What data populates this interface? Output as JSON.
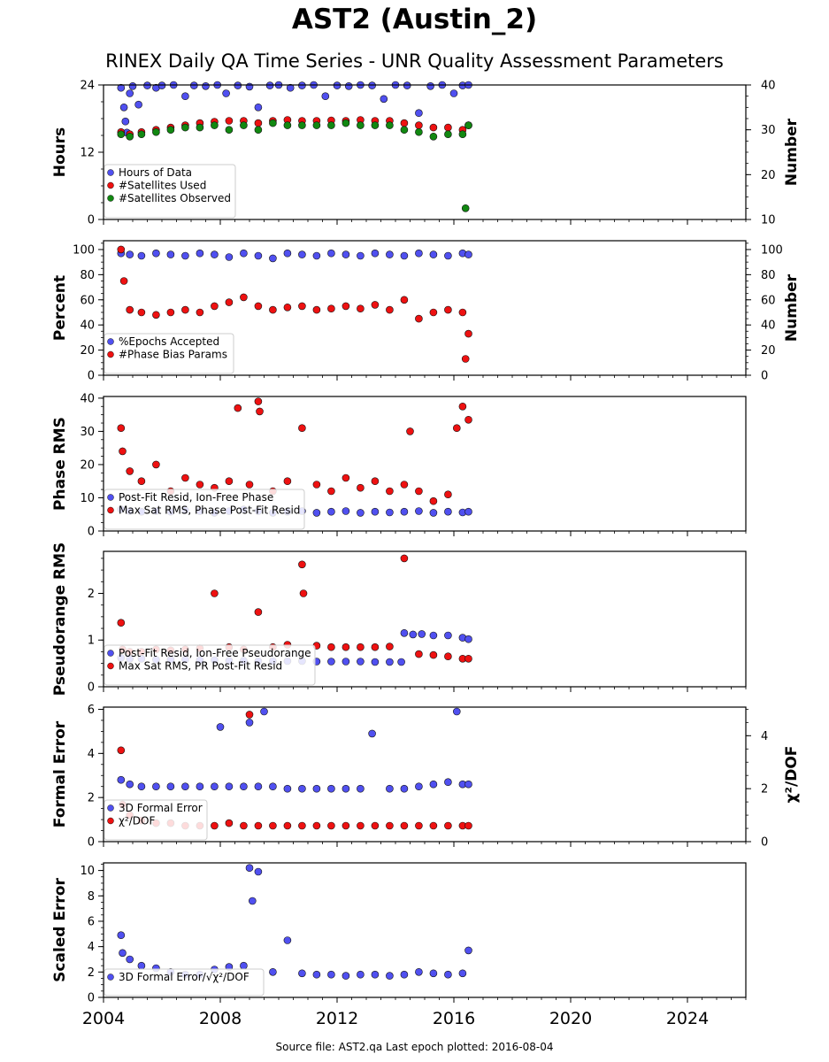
{
  "title": "AST2 (Austin_2)",
  "subtitle": "RINEX Daily QA Time Series - UNR Quality Assessment Parameters",
  "footer": "Source file: AST2.qa Last epoch plotted: 2016-08-04",
  "colors": {
    "blue": "#5050f0",
    "red": "#ee1111",
    "green": "#118811",
    "edge": "#111111"
  },
  "chart_data": [
    {
      "type": "scatter",
      "ylabel": "Hours",
      "ylim": [
        0,
        24
      ],
      "yticks": [
        0,
        12,
        24
      ],
      "y2label": "Number",
      "y2lim": [
        10,
        40
      ],
      "y2ticks": [
        10,
        20,
        30,
        40
      ],
      "legend": "lower-left",
      "series": [
        {
          "name": "Hours of Data",
          "color": "blue",
          "axis": "left",
          "x": [
            2004.6,
            2004.7,
            2004.75,
            2004.8,
            2004.9,
            2005.0,
            2005.2,
            2005.5,
            2005.8,
            2006.0,
            2006.4,
            2006.8,
            2007.1,
            2007.5,
            2007.9,
            2008.2,
            2008.6,
            2009.0,
            2009.3,
            2009.7,
            2010.0,
            2010.4,
            2010.8,
            2011.2,
            2011.6,
            2012.0,
            2012.4,
            2012.8,
            2013.2,
            2013.6,
            2014.0,
            2014.4,
            2014.8,
            2015.2,
            2015.6,
            2016.0,
            2016.3,
            2016.5
          ],
          "y": [
            23.5,
            20.0,
            17.5,
            15.5,
            22.5,
            23.8,
            20.5,
            23.9,
            23.5,
            23.9,
            24.0,
            22.0,
            23.9,
            23.8,
            24.0,
            22.5,
            23.9,
            23.7,
            20.0,
            23.9,
            24.0,
            23.5,
            23.9,
            24.0,
            22.0,
            23.9,
            23.8,
            24.0,
            23.9,
            21.5,
            24.0,
            23.9,
            19.0,
            23.8,
            24.0,
            22.5,
            23.9,
            24.0
          ]
        },
        {
          "name": "#Satellites Used",
          "color": "red",
          "axis": "right",
          "x": [
            2004.6,
            2004.9,
            2005.3,
            2005.8,
            2006.3,
            2006.8,
            2007.3,
            2007.8,
            2008.3,
            2008.8,
            2009.3,
            2009.8,
            2010.3,
            2010.8,
            2011.3,
            2011.8,
            2012.3,
            2012.8,
            2013.3,
            2013.8,
            2014.3,
            2014.8,
            2015.3,
            2015.8,
            2016.3,
            2016.5
          ],
          "y": [
            29.5,
            29.0,
            29.5,
            30.0,
            30.5,
            31.0,
            31.5,
            31.8,
            32.0,
            32.0,
            31.5,
            32.0,
            32.2,
            32.0,
            32.0,
            32.1,
            32.0,
            32.2,
            32.0,
            32.0,
            31.5,
            31.0,
            30.5,
            30.5,
            30.0,
            31.0
          ]
        },
        {
          "name": "#Satellites Observed",
          "color": "green",
          "axis": "right",
          "x": [
            2004.6,
            2004.9,
            2005.3,
            2005.8,
            2006.3,
            2006.8,
            2007.3,
            2007.8,
            2008.3,
            2008.8,
            2009.3,
            2009.8,
            2010.3,
            2010.8,
            2011.3,
            2011.8,
            2012.3,
            2012.8,
            2013.3,
            2013.8,
            2014.3,
            2014.8,
            2015.3,
            2015.8,
            2016.3,
            2016.4,
            2016.5
          ],
          "y": [
            29.0,
            28.5,
            29.0,
            29.5,
            30.0,
            30.5,
            30.5,
            31.0,
            30.0,
            31.0,
            30.0,
            31.5,
            31.0,
            31.0,
            31.0,
            31.0,
            31.5,
            31.0,
            31.0,
            31.0,
            30.0,
            29.5,
            28.5,
            29.0,
            29.0,
            12.5,
            31.0
          ]
        }
      ]
    },
    {
      "type": "scatter",
      "ylabel": "Percent",
      "ylim": [
        0,
        107
      ],
      "yticks": [
        0,
        20,
        40,
        60,
        80,
        100
      ],
      "y2label": "Number",
      "y2lim": [
        0,
        107
      ],
      "y2ticks": [
        0,
        20,
        40,
        60,
        80,
        100
      ],
      "legend": "lower-left",
      "series": [
        {
          "name": "%Epochs Accepted",
          "color": "blue",
          "axis": "left",
          "x": [
            2004.6,
            2004.9,
            2005.3,
            2005.8,
            2006.3,
            2006.8,
            2007.3,
            2007.8,
            2008.3,
            2008.8,
            2009.3,
            2009.8,
            2010.3,
            2010.8,
            2011.3,
            2011.8,
            2012.3,
            2012.8,
            2013.3,
            2013.8,
            2014.3,
            2014.8,
            2015.3,
            2015.8,
            2016.3,
            2016.5
          ],
          "y": [
            97,
            96,
            95,
            97,
            96,
            95,
            97,
            96,
            94,
            97,
            95,
            93,
            97,
            96,
            95,
            97,
            96,
            95,
            97,
            96,
            95,
            97,
            96,
            95,
            97,
            96
          ]
        },
        {
          "name": "#Phase Bias Params",
          "color": "red",
          "axis": "right",
          "x": [
            2004.6,
            2004.7,
            2004.9,
            2005.3,
            2005.8,
            2006.3,
            2006.8,
            2007.3,
            2007.8,
            2008.3,
            2008.8,
            2009.3,
            2009.8,
            2010.3,
            2010.8,
            2011.3,
            2011.8,
            2012.3,
            2012.8,
            2013.3,
            2013.8,
            2014.3,
            2014.8,
            2015.3,
            2015.8,
            2016.3,
            2016.4,
            2016.5
          ],
          "y": [
            100,
            75,
            52,
            50,
            48,
            50,
            52,
            50,
            55,
            58,
            62,
            55,
            52,
            54,
            55,
            52,
            53,
            55,
            53,
            56,
            52,
            60,
            45,
            50,
            52,
            50,
            13,
            33
          ]
        }
      ]
    },
    {
      "type": "scatter",
      "ylabel": "Phase RMS",
      "ylim": [
        0,
        40.5
      ],
      "yticks": [
        0,
        10,
        20,
        30,
        40
      ],
      "legend": "lower-left",
      "series": [
        {
          "name": "Post-Fit Resid, Ion-Free Phase",
          "color": "blue",
          "axis": "left",
          "x": [
            2004.6,
            2004.9,
            2005.3,
            2005.8,
            2006.3,
            2006.8,
            2007.3,
            2007.8,
            2008.3,
            2008.8,
            2009.3,
            2009.8,
            2010.3,
            2010.8,
            2011.3,
            2011.8,
            2012.3,
            2012.8,
            2013.3,
            2013.8,
            2014.3,
            2014.8,
            2015.3,
            2015.8,
            2016.3,
            2016.5
          ],
          "y": [
            6.5,
            6.0,
            5.8,
            6.0,
            5.8,
            6.2,
            6.0,
            5.5,
            6.0,
            6.5,
            6.0,
            5.5,
            5.8,
            6.0,
            5.5,
            5.8,
            6.0,
            5.5,
            5.8,
            5.6,
            5.8,
            6.0,
            5.5,
            5.8,
            5.6,
            5.8
          ]
        },
        {
          "name": "Max Sat RMS, Phase Post-Fit Resid",
          "color": "red",
          "axis": "left",
          "x": [
            2004.6,
            2004.65,
            2004.9,
            2005.3,
            2005.8,
            2006.3,
            2006.8,
            2007.3,
            2007.8,
            2008.3,
            2008.6,
            2009.0,
            2009.3,
            2009.35,
            2009.8,
            2010.3,
            2010.8,
            2011.3,
            2011.8,
            2012.3,
            2012.8,
            2013.3,
            2013.8,
            2014.3,
            2014.5,
            2014.8,
            2015.3,
            2015.8,
            2016.1,
            2016.3,
            2016.5
          ],
          "y": [
            31,
            24,
            18,
            15,
            20,
            12,
            16,
            14,
            13,
            15,
            37,
            14,
            39,
            36,
            12,
            15,
            31,
            14,
            12,
            16,
            13,
            15,
            12,
            14,
            30,
            12,
            9,
            11,
            31,
            37.5,
            33.5
          ]
        }
      ]
    },
    {
      "type": "scatter",
      "ylabel": "Pseudorange RMS",
      "ylim": [
        0,
        2.9
      ],
      "yticks": [
        0,
        1,
        2
      ],
      "legend": "lower-left",
      "series": [
        {
          "name": "Post-Fit Resid, Ion-Free Pseudorange",
          "color": "blue",
          "axis": "left",
          "x": [
            2004.6,
            2004.9,
            2005.3,
            2005.8,
            2006.3,
            2006.8,
            2007.3,
            2007.8,
            2008.3,
            2008.8,
            2009.3,
            2009.8,
            2010.3,
            2010.8,
            2011.3,
            2011.8,
            2012.3,
            2012.8,
            2013.3,
            2013.8,
            2014.2,
            2014.3,
            2014.6,
            2014.9,
            2015.3,
            2015.8,
            2016.3,
            2016.5
          ],
          "y": [
            0.62,
            0.6,
            0.6,
            0.58,
            0.58,
            0.58,
            0.57,
            0.57,
            0.56,
            0.56,
            0.55,
            0.55,
            0.55,
            0.55,
            0.54,
            0.54,
            0.54,
            0.54,
            0.53,
            0.53,
            0.53,
            1.15,
            1.12,
            1.13,
            1.1,
            1.1,
            1.05,
            1.02
          ]
        },
        {
          "name": "Max Sat RMS, PR Post-Fit Resid",
          "color": "red",
          "axis": "left",
          "x": [
            2004.6,
            2004.65,
            2004.9,
            2005.3,
            2005.8,
            2006.3,
            2006.8,
            2007.3,
            2007.8,
            2008.3,
            2008.8,
            2009.3,
            2009.8,
            2010.3,
            2010.8,
            2010.85,
            2011.3,
            2011.8,
            2012.3,
            2012.8,
            2013.3,
            2013.8,
            2014.3,
            2014.8,
            2015.3,
            2015.8,
            2016.3,
            2016.5
          ],
          "y": [
            1.37,
            0.8,
            0.75,
            0.75,
            0.8,
            0.78,
            0.8,
            0.82,
            2.0,
            0.85,
            0.8,
            1.6,
            0.85,
            0.9,
            2.62,
            2.0,
            0.88,
            0.85,
            0.85,
            0.85,
            0.85,
            0.86,
            2.75,
            0.7,
            0.68,
            0.65,
            0.6,
            0.6
          ]
        }
      ]
    },
    {
      "type": "scatter",
      "ylabel": "Formal Error",
      "ylim": [
        0,
        6.1
      ],
      "yticks": [
        0,
        2,
        4,
        6
      ],
      "y2label": "χ²/DOF",
      "y2lim": [
        0,
        5.08
      ],
      "y2ticks": [
        0,
        2,
        4
      ],
      "legend": "lower-left",
      "series": [
        {
          "name": "3D Formal Error",
          "color": "blue",
          "axis": "left",
          "x": [
            2004.6,
            2004.9,
            2005.3,
            2005.8,
            2006.3,
            2006.8,
            2007.3,
            2007.8,
            2008.0,
            2008.3,
            2008.8,
            2009.0,
            2009.3,
            2009.5,
            2009.8,
            2010.3,
            2010.8,
            2011.3,
            2011.8,
            2012.3,
            2012.8,
            2013.2,
            2013.8,
            2014.3,
            2014.8,
            2015.3,
            2015.8,
            2016.1,
            2016.3,
            2016.5
          ],
          "y": [
            2.8,
            2.6,
            2.5,
            2.5,
            2.5,
            2.5,
            2.5,
            2.5,
            5.2,
            2.5,
            2.5,
            5.4,
            2.5,
            5.9,
            2.5,
            2.4,
            2.4,
            2.4,
            2.4,
            2.4,
            2.4,
            4.9,
            2.4,
            2.4,
            2.5,
            2.6,
            2.7,
            5.9,
            2.6,
            2.6
          ]
        },
        {
          "name": "χ²/DOF",
          "color": "red",
          "axis": "right",
          "x": [
            2004.6,
            2004.65,
            2004.9,
            2005.3,
            2005.8,
            2006.3,
            2006.8,
            2007.3,
            2007.8,
            2008.3,
            2008.8,
            2009.0,
            2009.3,
            2009.8,
            2010.3,
            2010.8,
            2011.3,
            2011.8,
            2012.3,
            2012.8,
            2013.3,
            2013.8,
            2014.3,
            2014.8,
            2015.3,
            2015.8,
            2016.3,
            2016.5
          ],
          "y": [
            3.45,
            1.4,
            1.0,
            0.8,
            0.7,
            0.7,
            0.6,
            0.6,
            0.6,
            0.7,
            0.6,
            4.8,
            0.6,
            0.6,
            0.6,
            0.6,
            0.6,
            0.6,
            0.6,
            0.6,
            0.6,
            0.6,
            0.6,
            0.6,
            0.6,
            0.6,
            0.6,
            0.6
          ]
        }
      ]
    },
    {
      "type": "scatter",
      "ylabel": "Scaled Error",
      "ylim": [
        0,
        10.6
      ],
      "yticks": [
        0,
        2,
        4,
        6,
        8,
        10
      ],
      "legend": "lower-left",
      "series": [
        {
          "name": "3D Formal Error/√χ²/DOF",
          "color": "blue",
          "axis": "left",
          "x": [
            2004.6,
            2004.65,
            2004.9,
            2005.3,
            2005.8,
            2006.3,
            2006.8,
            2007.3,
            2007.8,
            2008.3,
            2008.8,
            2009.0,
            2009.1,
            2009.3,
            2009.8,
            2010.3,
            2010.8,
            2011.3,
            2011.8,
            2012.3,
            2012.8,
            2013.3,
            2013.8,
            2014.3,
            2014.8,
            2015.3,
            2015.8,
            2016.3,
            2016.5
          ],
          "y": [
            4.9,
            3.5,
            3.0,
            2.5,
            2.3,
            2.0,
            1.8,
            1.8,
            2.2,
            2.4,
            2.5,
            10.2,
            7.6,
            9.9,
            2.0,
            4.5,
            1.9,
            1.8,
            1.8,
            1.7,
            1.8,
            1.8,
            1.7,
            1.8,
            2.0,
            1.9,
            1.8,
            1.9,
            3.7
          ]
        }
      ]
    }
  ],
  "x_axis": {
    "xlim": [
      2004,
      2026
    ],
    "major_ticks": [
      2004,
      2008,
      2012,
      2016,
      2020,
      2024
    ]
  }
}
